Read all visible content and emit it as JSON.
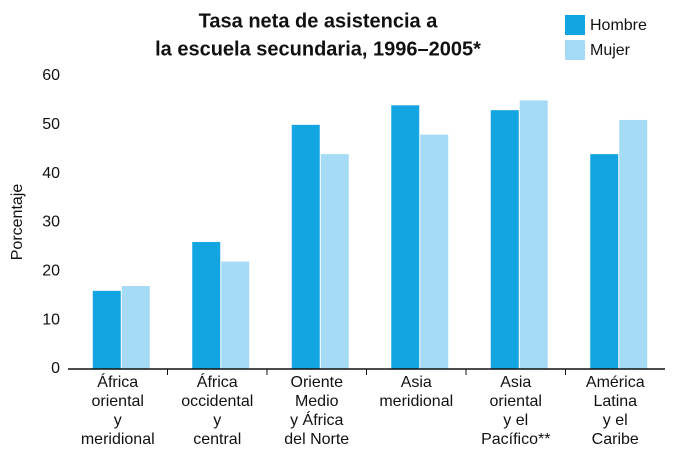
{
  "chart_data": {
    "type": "bar",
    "title": [
      "Tasa neta de asistencia a",
      "la escuela secundaria, 1996–2005*"
    ],
    "y_label": "Porcentaje",
    "categories": [
      [
        "África",
        "oriental",
        "y",
        "meridional"
      ],
      [
        "África",
        "occidental",
        "y",
        "central"
      ],
      [
        "Oriente",
        "Medio",
        "y África",
        "del Norte"
      ],
      [
        "Asia",
        "meridional"
      ],
      [
        "Asia",
        "oriental",
        "y el",
        "Pacífico**"
      ],
      [
        "América",
        "Latina",
        "y el",
        "Caribe"
      ]
    ],
    "series": [
      {
        "name": "Hombre",
        "color": "#12a5e2",
        "values": [
          16,
          26,
          50,
          54,
          53,
          44
        ]
      },
      {
        "name": "Mujer",
        "color": "#a5dbf5",
        "values": [
          17,
          22,
          44,
          48,
          55,
          51
        ]
      }
    ],
    "ylim": [
      0,
      60
    ],
    "yticks": [
      0,
      10,
      20,
      30,
      40,
      50,
      60
    ],
    "grid": false,
    "legend": "top-right"
  }
}
